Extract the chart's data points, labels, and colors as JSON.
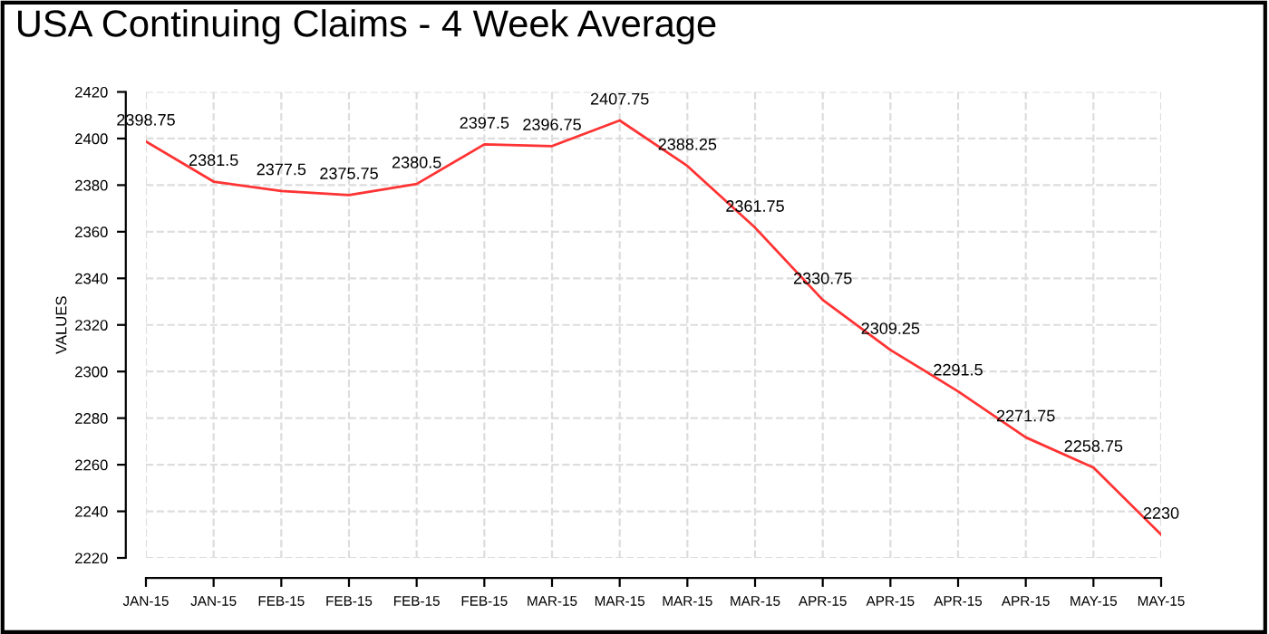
{
  "chart_data": {
    "type": "line",
    "title": "USA Continuing Claims - 4 Week Average",
    "ylabel": "VALUES",
    "categories": [
      "JAN-15",
      "JAN-15",
      "FEB-15",
      "FEB-15",
      "FEB-15",
      "FEB-15",
      "MAR-15",
      "MAR-15",
      "MAR-15",
      "MAR-15",
      "APR-15",
      "APR-15",
      "APR-15",
      "APR-15",
      "MAY-15",
      "MAY-15"
    ],
    "series": [
      {
        "color": "#ff3333",
        "values": [
          2398.75,
          2381.5,
          2377.5,
          2375.75,
          2380.5,
          2397.5,
          2396.75,
          2407.75,
          2388.25,
          2361.75,
          2330.75,
          2309.25,
          2291.5,
          2271.75,
          2258.75,
          2230
        ]
      }
    ],
    "ylim": [
      2220,
      2420
    ],
    "yticks": [
      2220,
      2240,
      2260,
      2280,
      2300,
      2320,
      2340,
      2360,
      2380,
      2400,
      2420
    ],
    "grid": true,
    "data_labels": true,
    "marker": "none",
    "line_style": "solid"
  }
}
